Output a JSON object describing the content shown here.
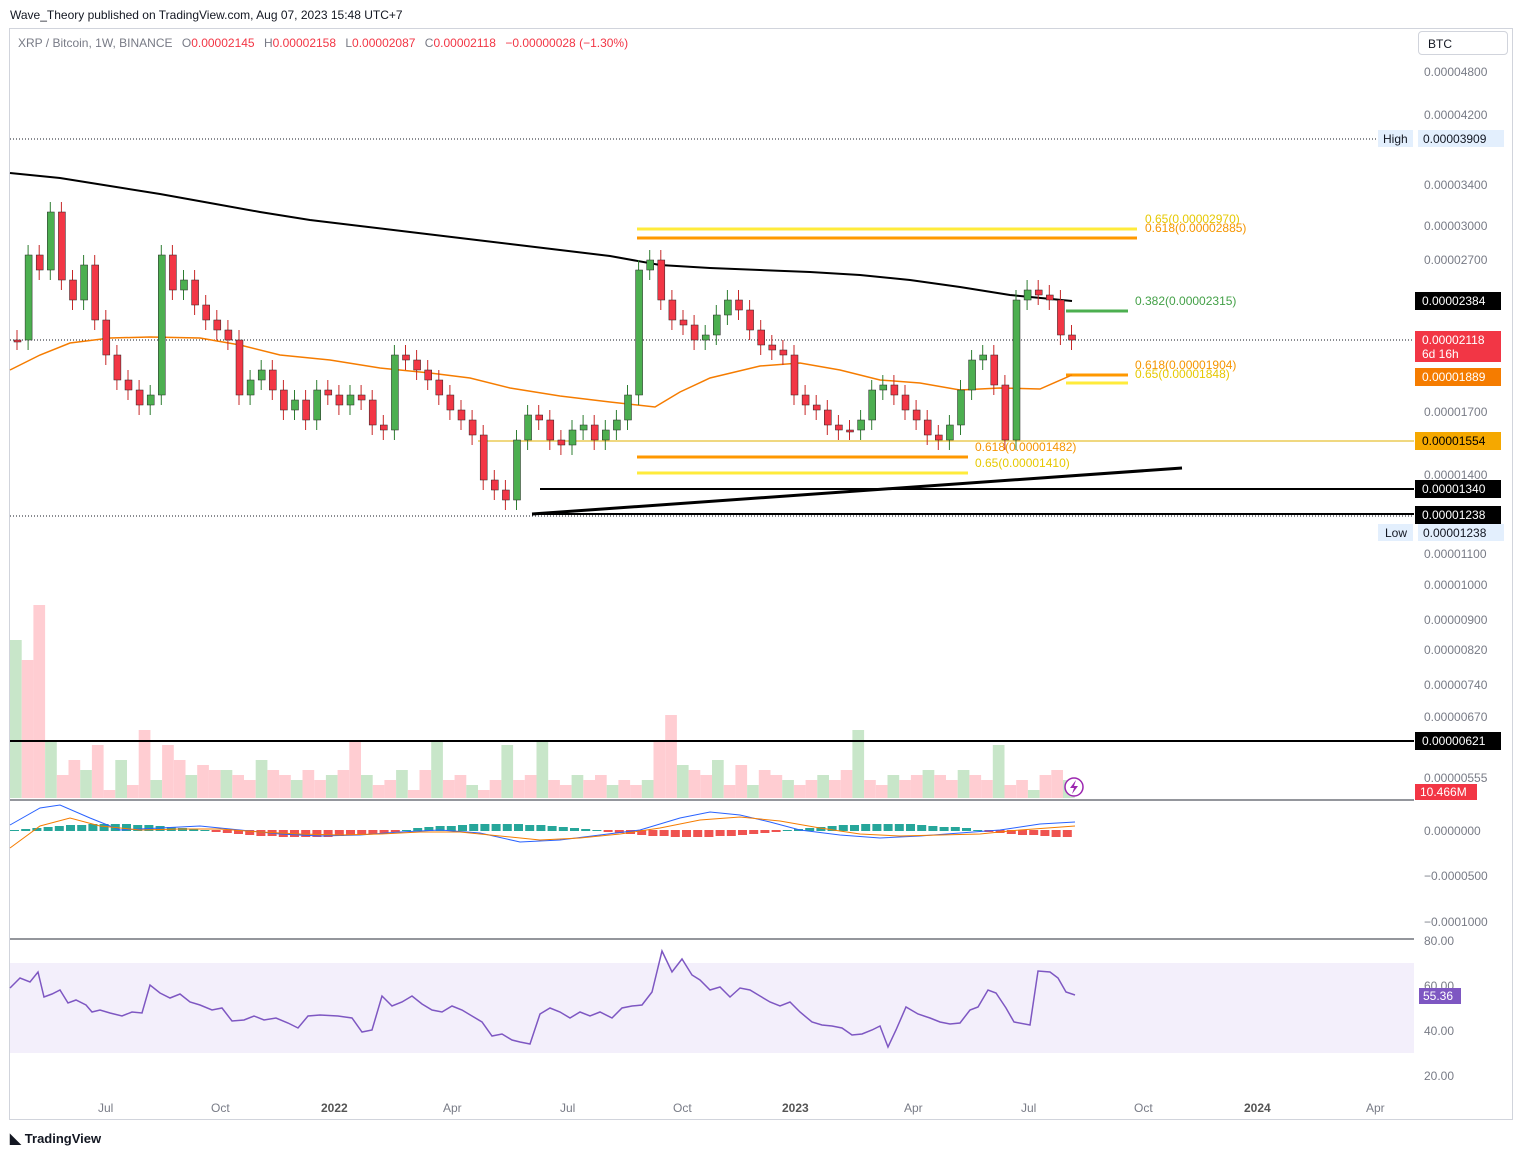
{
  "top_credit": "Wave_Theory published on TradingView.com, Aug 07, 2023 15:48 UTC+7",
  "symbol": {
    "name": "XRP / Bitcoin, 1W, BINANCE",
    "o_label": "O",
    "o": "0.00002145",
    "h_label": "H",
    "h": "0.00002158",
    "l_label": "L",
    "l": "0.00002087",
    "c_label": "C",
    "c": "0.00002118",
    "change": "−0.00000028 (−1.30%)"
  },
  "currency_button": "BTC",
  "price_axis": {
    "ticks": [
      "0.00004800",
      "0.00004200",
      "0.00003400",
      "0.00003000",
      "0.00002700",
      "0.00001700",
      "0.00001400",
      "0.00001100",
      "0.00001000",
      "0.00000900",
      "0.00000820",
      "0.00000740",
      "0.00000670",
      "0.00000555"
    ],
    "high_label": "High",
    "high_value": "0.00003909",
    "low_label": "Low",
    "low_value": "0.00001238",
    "badges": {
      "level_2384": "0.00002384",
      "current_price": "0.00002118",
      "countdown": "6d 16h",
      "ema_1889": "0.00001889",
      "level_1554": "0.00001554",
      "level_1340": "0.00001340",
      "level_1238": "0.00001238",
      "level_621": "0.00000621",
      "volume": "10.466M"
    }
  },
  "fib_labels": {
    "top_065": "0.65(0.00002970)",
    "top_0618": "0.618(0.00002885)",
    "mid_0382": "0.382(0.00002315)",
    "mid_0618": "0.618(0.00001904)",
    "mid_065": "0.65(0.00001848)",
    "low_0618": "0.618(0.00001482)",
    "low_065": "0.65(0.00001410)"
  },
  "macd_axis": [
    "0.0000000",
    "−0.0000500",
    "−0.0001000"
  ],
  "rsi_axis": [
    "80.00",
    "60.00",
    "40.00",
    "20.00"
  ],
  "rsi_value": "55.36",
  "time_axis": [
    "Jul",
    "Oct",
    "2022",
    "Apr",
    "Jul",
    "Oct",
    "2023",
    "Apr",
    "Jul",
    "Oct",
    "2024",
    "Apr"
  ],
  "footer_brand": "TradingView",
  "colors": {
    "up": "#089981",
    "down": "#f23645",
    "up_body": "#4caf50",
    "ema_long": "#000000",
    "ema_mid": "#f57c00",
    "fib_gold": "#ffeb3b",
    "fib_orange": "#ff9800",
    "fib_green": "#4caf50",
    "rsi_line": "#7e57c2",
    "rsi_band": "#f3effb"
  }
}
